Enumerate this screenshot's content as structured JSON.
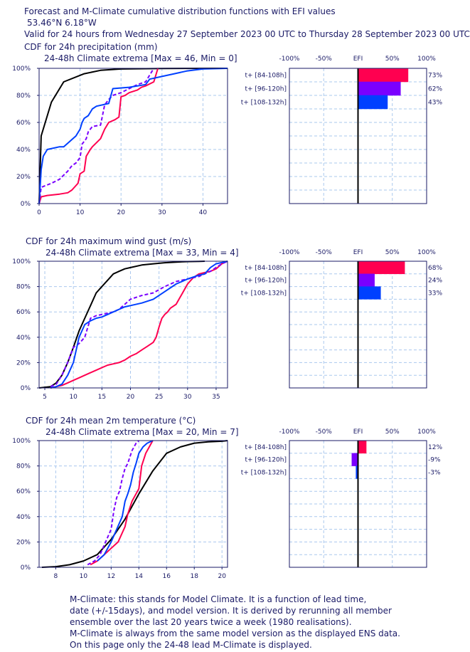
{
  "header": {
    "title": "Forecast and M-Climate cumulative distribution functions with EFI values",
    "location": "53.46°N 6.18°W",
    "validity": "Valid for 24 hours from Wednesday 27 September 2023 00 UTC to Thursday 28 September 2023 00 UTC"
  },
  "efi_axis_labels": [
    "-100%",
    "-50%",
    "EFI",
    "50%",
    "100%"
  ],
  "footer": {
    "lines": [
      "M-Climate: this stands for Model Climate. It is a function of lead time,",
      "date (+/-15days), and model version. It is derived by rerunning all member",
      "ensemble over the last 20 years twice a week (1980 realisations).",
      "M-Climate is always from the same model version as the displayed ENS data.",
      "On this page only the 24-48 lead M-Climate is displayed."
    ]
  },
  "colors": {
    "climate": "#000000",
    "lead_84_108": "#ff0050",
    "lead_96_120": "#7a00ff",
    "lead_108_132": "#0040ff",
    "axis_text": "#1a1a66",
    "grid": "#aac8ee"
  },
  "chart_data": [
    {
      "type": "line",
      "title": "CDF for 24h precipitation (mm)",
      "subtitle": "24-48h Climate extrema [Max = 46, Min = 0]",
      "xlim": [
        0,
        46
      ],
      "ylim": [
        0,
        100
      ],
      "xticks": [
        0,
        10,
        20,
        30,
        40
      ],
      "yticks": [
        "0%",
        "20%",
        "40%",
        "60%",
        "80%",
        "100%"
      ],
      "series": [
        {
          "name": "climate",
          "color": "#000000",
          "dash": false,
          "x": [
            0,
            0.5,
            3,
            6,
            11,
            15,
            20,
            30,
            46
          ],
          "y": [
            0,
            50,
            75,
            90,
            96,
            98.5,
            99.5,
            99.9,
            100
          ]
        },
        {
          "name": "t+ [84-108h]",
          "color": "#ff0050",
          "dash": false,
          "x": [
            0,
            0.5,
            2,
            5,
            7,
            8,
            9.5,
            10,
            11,
            11.5,
            12.5,
            13,
            15,
            16,
            17,
            18.5,
            19.5,
            20,
            21,
            22,
            24,
            25,
            26,
            28,
            29
          ],
          "y": [
            0,
            5,
            6,
            7,
            8,
            10,
            15,
            22,
            24,
            35,
            40,
            42,
            48,
            55,
            60,
            62,
            64,
            79,
            80,
            82,
            84,
            86,
            87,
            90,
            100
          ]
        },
        {
          "name": "t+ [96-120h]",
          "color": "#7a00ff",
          "dash": true,
          "x": [
            0,
            0.5,
            3,
            5,
            7,
            8,
            9,
            10,
            10.5,
            11,
            11.5,
            12,
            13,
            15,
            16,
            17,
            18,
            20,
            22,
            24,
            26,
            27,
            28
          ],
          "y": [
            0,
            12,
            15,
            18,
            24,
            28,
            30,
            34,
            44,
            46,
            48,
            53,
            57,
            58,
            73,
            77,
            80,
            82,
            85,
            88,
            90,
            95,
            100
          ]
        },
        {
          "name": "t+ [108-132h]",
          "color": "#0040ff",
          "dash": false,
          "x": [
            0,
            0.5,
            1,
            2,
            5,
            6,
            9,
            10,
            10.5,
            11,
            12,
            13,
            14,
            17,
            18,
            22,
            26,
            27,
            30,
            33,
            36,
            40,
            46
          ],
          "y": [
            0,
            25,
            35,
            40,
            42,
            42,
            50,
            55,
            60,
            63,
            65,
            70,
            72,
            74,
            85,
            86,
            88,
            92,
            94,
            96,
            98,
            99.5,
            100
          ]
        }
      ],
      "efi": [
        {
          "label": "t+ [84-108h]",
          "value": 73,
          "value_label": "73%",
          "color": "#ff0050"
        },
        {
          "label": "t+ [96-120h]",
          "value": 62,
          "value_label": "62%",
          "color": "#7a00ff"
        },
        {
          "label": "t+ [108-132h]",
          "value": 43,
          "value_label": "43%",
          "color": "#0040ff"
        }
      ]
    },
    {
      "type": "line",
      "title": "CDF for 24h maximum wind gust (m/s)",
      "subtitle": "24-48h Climate extrema [Max = 33, Min = 4]",
      "xlim": [
        4,
        37
      ],
      "ylim": [
        0,
        100
      ],
      "xticks": [
        5,
        10,
        15,
        20,
        25,
        30,
        35
      ],
      "yticks": [
        "0%",
        "20%",
        "40%",
        "60%",
        "80%",
        "100%"
      ],
      "series": [
        {
          "name": "climate",
          "color": "#000000",
          "dash": false,
          "x": [
            4,
            6,
            7,
            8,
            9,
            10,
            11,
            12,
            13,
            14,
            15,
            16,
            17,
            18,
            19,
            20,
            22,
            24,
            26,
            28,
            30,
            32,
            33
          ],
          "y": [
            0,
            1,
            4,
            10,
            20,
            32,
            45,
            55,
            65,
            75,
            80,
            85,
            90,
            92,
            94,
            95,
            97,
            98,
            98.8,
            99.3,
            99.7,
            99.9,
            100
          ]
        },
        {
          "name": "t+ [84-108h]",
          "color": "#ff0050",
          "dash": false,
          "x": [
            6,
            8,
            9,
            10,
            11,
            12,
            13,
            14,
            15,
            16,
            17,
            18,
            19,
            20,
            21,
            22,
            23,
            24,
            24.5,
            25,
            25.5,
            26,
            26.5,
            27,
            28,
            28.5,
            29,
            30,
            31,
            32,
            33,
            34,
            35,
            36,
            37
          ],
          "y": [
            0,
            2,
            4,
            6,
            8,
            10,
            12,
            14,
            16,
            18,
            19,
            20,
            22,
            25,
            27,
            30,
            33,
            36,
            40,
            48,
            55,
            58,
            60,
            63,
            66,
            70,
            74,
            82,
            87,
            90,
            91,
            92,
            94,
            98,
            100
          ]
        },
        {
          "name": "t+ [96-120h]",
          "color": "#7a00ff",
          "dash": true,
          "x": [
            6,
            7,
            8,
            9,
            10,
            11,
            12,
            13,
            14,
            15,
            16,
            17,
            18,
            19,
            20,
            22,
            24,
            26,
            28,
            30,
            32,
            34,
            36,
            37
          ],
          "y": [
            1,
            3,
            10,
            20,
            32,
            35,
            40,
            55,
            57,
            58,
            59,
            60,
            62,
            66,
            70,
            73,
            75,
            80,
            84,
            86,
            88,
            92,
            98,
            100
          ]
        },
        {
          "name": "t+ [108-132h]",
          "color": "#0040ff",
          "dash": false,
          "x": [
            6,
            7,
            8,
            9,
            10,
            11,
            12,
            13,
            14,
            15,
            16,
            17,
            18,
            19,
            20,
            22,
            24,
            26,
            28,
            30,
            32,
            33,
            34,
            35,
            36,
            37
          ],
          "y": [
            0,
            1,
            3,
            10,
            20,
            40,
            50,
            53,
            55,
            56,
            58,
            60,
            62,
            64,
            65,
            67,
            70,
            76,
            82,
            86,
            89,
            90,
            95,
            98,
            99,
            100
          ]
        }
      ],
      "efi": [
        {
          "label": "t+ [84-108h]",
          "value": 68,
          "value_label": "68%",
          "color": "#ff0050"
        },
        {
          "label": "t+ [96-120h]",
          "value": 24,
          "value_label": "24%",
          "color": "#7a00ff"
        },
        {
          "label": "t+ [108-132h]",
          "value": 33,
          "value_label": "33%",
          "color": "#0040ff"
        }
      ]
    },
    {
      "type": "line",
      "title": "CDF for 24h mean 2m temperature (°C)",
      "subtitle": "24-48h Climate extrema [Max = 20, Min = 7]",
      "xlim": [
        6.8,
        20.4
      ],
      "ylim": [
        0,
        100
      ],
      "xticks": [
        8,
        10,
        12,
        14,
        16,
        18,
        20
      ],
      "yticks": [
        "0%",
        "20%",
        "40%",
        "60%",
        "80%",
        "100%"
      ],
      "series": [
        {
          "name": "climate",
          "color": "#000000",
          "dash": false,
          "x": [
            7,
            8,
            9,
            10,
            11,
            12,
            13,
            14,
            15,
            16,
            17,
            18,
            19,
            20,
            20.4
          ],
          "y": [
            0,
            0.5,
            2,
            5,
            10,
            22,
            38,
            58,
            76,
            90,
            95,
            98,
            99,
            99.5,
            100
          ]
        },
        {
          "name": "t+ [84-108h]",
          "color": "#ff0050",
          "dash": false,
          "x": [
            10.5,
            11,
            11.5,
            12,
            12.5,
            13,
            13.2,
            13.5,
            13.7,
            14,
            14.2,
            14.5,
            14.8,
            15
          ],
          "y": [
            2,
            5,
            10,
            15,
            20,
            32,
            42,
            52,
            56,
            62,
            80,
            90,
            96,
            100
          ]
        },
        {
          "name": "t+ [96-120h]",
          "color": "#7a00ff",
          "dash": true,
          "x": [
            10.3,
            10.8,
            11.2,
            11.6,
            12,
            12.2,
            12.4,
            12.6,
            12.8,
            13,
            13.2,
            13.5,
            13.8,
            14
          ],
          "y": [
            2,
            5,
            10,
            20,
            30,
            45,
            55,
            60,
            70,
            78,
            82,
            92,
            98,
            100
          ]
        },
        {
          "name": "t+ [108-132h]",
          "color": "#0040ff",
          "dash": false,
          "x": [
            11,
            11.5,
            12,
            12.4,
            12.8,
            13,
            13.2,
            13.4,
            13.6,
            13.8,
            14,
            14.3,
            14.6,
            15
          ],
          "y": [
            5,
            10,
            20,
            30,
            40,
            52,
            58,
            65,
            75,
            82,
            90,
            95,
            98,
            100
          ]
        }
      ],
      "efi": [
        {
          "label": "t+ [84-108h]",
          "value": 12,
          "value_label": "12%",
          "color": "#ff0050"
        },
        {
          "label": "t+ [96-120h]",
          "value": -9,
          "value_label": "-9%",
          "color": "#7a00ff"
        },
        {
          "label": "t+ [108-132h]",
          "value": -3,
          "value_label": "-3%",
          "color": "#0040ff"
        }
      ]
    }
  ]
}
